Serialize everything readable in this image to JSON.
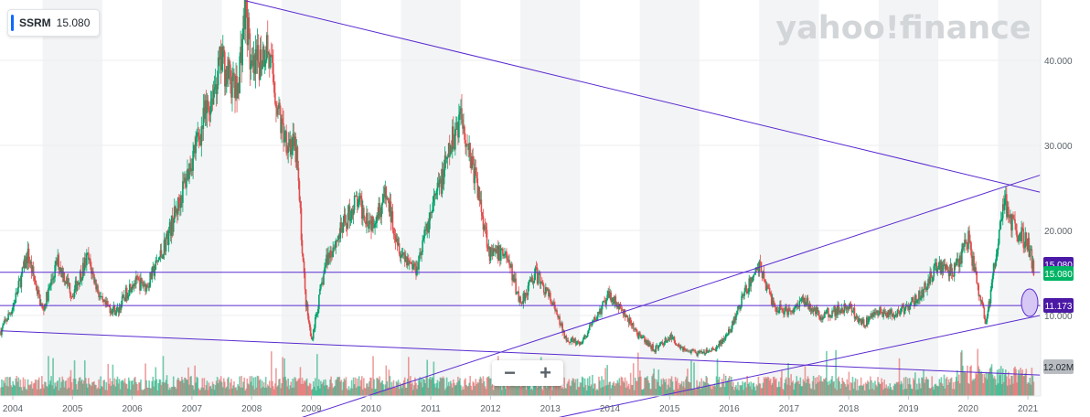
{
  "ticker": {
    "symbol": "SSRM",
    "price": "15.080"
  },
  "watermark": "yahoo!finance",
  "zoom": {
    "minus": "−",
    "plus": "+"
  },
  "labels": {
    "current": "15.080",
    "hline_covered": "15.080",
    "support": "11.173",
    "volume": "12.02M"
  },
  "colors": {
    "up": "#00a36c",
    "down": "#e04e4e",
    "trend": "#5a2bd0",
    "accent": "#0f69ff",
    "current_label": "#00b464",
    "support_label": "#4b19a6",
    "volume_label": "#b9bdc2"
  },
  "chart_data": {
    "type": "candlestick",
    "title": "",
    "xlabel": "",
    "ylabel": "",
    "y_ticks": [
      "40.000",
      "30.000",
      "20.000",
      "10.000"
    ],
    "y_tick_values": [
      40,
      30,
      20,
      10
    ],
    "x_ticks": [
      "2004",
      "2005",
      "2006",
      "2007",
      "2008",
      "2009",
      "2010",
      "2011",
      "2012",
      "2013",
      "2014",
      "2015",
      "2016",
      "2017",
      "2018",
      "2019",
      "2020",
      "2021"
    ],
    "x_range": [
      2003.8,
      2021.2
    ],
    "y_range": [
      0.5,
      48
    ],
    "price_path": [
      [
        2003.8,
        8.2
      ],
      [
        2004.0,
        11.0
      ],
      [
        2004.25,
        17.2
      ],
      [
        2004.5,
        10.5
      ],
      [
        2004.75,
        16.4
      ],
      [
        2005.0,
        12.5
      ],
      [
        2005.25,
        16.8
      ],
      [
        2005.5,
        11.3
      ],
      [
        2005.75,
        10.5
      ],
      [
        2006.0,
        14.0
      ],
      [
        2006.25,
        13.5
      ],
      [
        2006.5,
        17.5
      ],
      [
        2006.75,
        22.5
      ],
      [
        2007.0,
        28.5
      ],
      [
        2007.25,
        34.0
      ],
      [
        2007.5,
        40.0
      ],
      [
        2007.75,
        36.0
      ],
      [
        2007.9,
        46.5
      ],
      [
        2008.0,
        38.0
      ],
      [
        2008.25,
        42.0
      ],
      [
        2008.5,
        32.0
      ],
      [
        2008.75,
        29.0
      ],
      [
        2008.9,
        12.0
      ],
      [
        2009.0,
        7.0
      ],
      [
        2009.25,
        16.5
      ],
      [
        2009.5,
        20.0
      ],
      [
        2009.75,
        23.5
      ],
      [
        2010.0,
        21.0
      ],
      [
        2010.25,
        24.0
      ],
      [
        2010.5,
        17.5
      ],
      [
        2010.75,
        15.5
      ],
      [
        2011.0,
        22.0
      ],
      [
        2011.25,
        27.5
      ],
      [
        2011.5,
        34.0
      ],
      [
        2011.75,
        26.0
      ],
      [
        2012.0,
        17.0
      ],
      [
        2012.25,
        17.5
      ],
      [
        2012.5,
        11.5
      ],
      [
        2012.75,
        15.0
      ],
      [
        2013.0,
        12.0
      ],
      [
        2013.25,
        7.5
      ],
      [
        2013.5,
        6.5
      ],
      [
        2013.75,
        9.5
      ],
      [
        2014.0,
        12.5
      ],
      [
        2014.25,
        10.0
      ],
      [
        2014.5,
        7.5
      ],
      [
        2014.75,
        6.0
      ],
      [
        2015.0,
        7.5
      ],
      [
        2015.25,
        6.0
      ],
      [
        2015.5,
        5.5
      ],
      [
        2015.75,
        6.0
      ],
      [
        2016.0,
        8.0
      ],
      [
        2016.25,
        12.5
      ],
      [
        2016.5,
        16.0
      ],
      [
        2016.75,
        11.0
      ],
      [
        2017.0,
        10.5
      ],
      [
        2017.25,
        12.0
      ],
      [
        2017.5,
        10.0
      ],
      [
        2017.75,
        10.5
      ],
      [
        2018.0,
        11.0
      ],
      [
        2018.25,
        9.0
      ],
      [
        2018.5,
        10.5
      ],
      [
        2018.75,
        10.0
      ],
      [
        2019.0,
        11.0
      ],
      [
        2019.25,
        13.0
      ],
      [
        2019.5,
        16.0
      ],
      [
        2019.75,
        15.0
      ],
      [
        2020.0,
        19.0
      ],
      [
        2020.2,
        12.0
      ],
      [
        2020.3,
        8.8
      ],
      [
        2020.45,
        16.5
      ],
      [
        2020.6,
        23.5
      ],
      [
        2020.75,
        20.5
      ],
      [
        2021.0,
        18.5
      ],
      [
        2021.1,
        15.08
      ]
    ],
    "horizontal_lines": [
      15.08,
      11.173
    ],
    "trend_lines": [
      {
        "from": [
          2007.9,
          47.0
        ],
        "to": [
          2021.2,
          24.5
        ]
      },
      {
        "from": [
          2008.75,
          -2.2
        ],
        "to": [
          2021.2,
          26.5
        ]
      },
      {
        "from": [
          2013.0,
          -2.2
        ],
        "to": [
          2021.2,
          10.0
        ]
      },
      {
        "from": [
          2003.8,
          8.2
        ],
        "to": [
          2021.2,
          3.0
        ]
      }
    ],
    "legend": "none",
    "grid": false
  }
}
